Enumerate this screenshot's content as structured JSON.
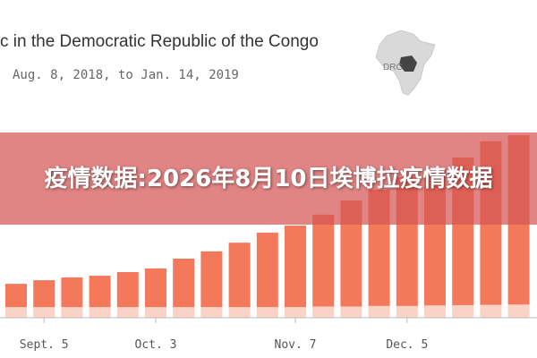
{
  "chart_data": {
    "type": "bar",
    "title": "c in the Democratic Republic of the Congo",
    "subtitle": "Aug. 8, 2018, to Jan. 14, 2019",
    "map_label": "DRC",
    "overlay_title": "疫情数据:2026年8月10日埃博拉疫情数据",
    "categories": [
      null,
      "Sept. 5",
      null,
      null,
      null,
      "Oct. 3",
      null,
      null,
      null,
      null,
      "Nov. 7",
      null,
      null,
      null,
      "Dec. 5",
      null,
      null,
      null,
      null
    ],
    "series": [
      {
        "color": "#fbd3c6",
        "values": [
          38,
          38,
          38,
          38,
          38,
          38,
          38,
          38,
          38,
          38,
          38,
          40,
          40,
          42,
          42,
          44,
          45,
          46,
          47
        ]
      },
      {
        "color": "#f4795b",
        "values": [
          83,
          96,
          106,
          112,
          125,
          138,
          173,
          199,
          230,
          266,
          291,
          328,
          379,
          415,
          460,
          483,
          527,
          584,
          605
        ]
      }
    ],
    "stacked": true,
    "ylim": [
      0,
      700
    ]
  }
}
